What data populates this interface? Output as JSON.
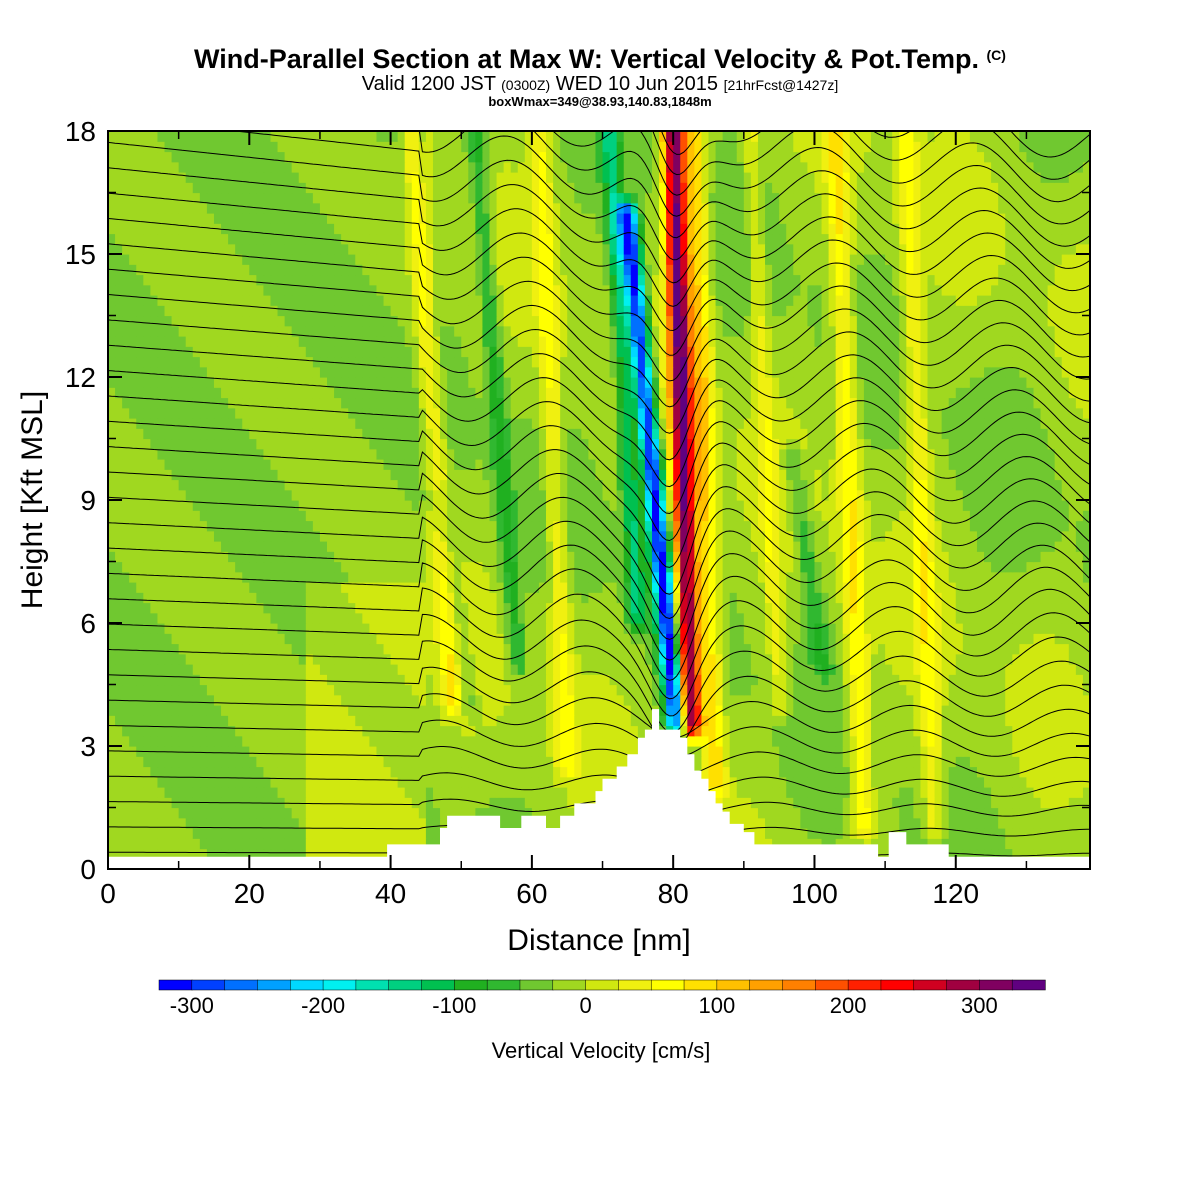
{
  "title": {
    "main": "Wind-Parallel Section at Max W: Vertical Velocity & Pot.Temp.",
    "copyright": "(C)",
    "valid_a": "Valid 1200 JST",
    "valid_utc": "(0300Z)",
    "valid_b": "WED 10 Jun 2015",
    "fcst": "[21hrFcst@1427z]",
    "box": "boxWmax=349@38.93,140.83,1848m"
  },
  "chart_data": {
    "type": "heatmap",
    "xlabel": "Distance [nm]",
    "ylabel": "Height [Kft MSL]",
    "xlim": [
      0,
      139
    ],
    "ylim": [
      0,
      18
    ],
    "x_ticks": [
      "0",
      "20",
      "40",
      "60",
      "80",
      "100",
      "120"
    ],
    "x_tick_values": [
      0,
      20,
      40,
      60,
      80,
      100,
      120
    ],
    "y_ticks": [
      "0",
      "3",
      "6",
      "9",
      "12",
      "15",
      "18"
    ],
    "y_tick_values": [
      0,
      3,
      6,
      9,
      12,
      15,
      18
    ],
    "colorbar": {
      "title": "Vertical Velocity [cm/s]",
      "labels": [
        "-300",
        "-200",
        "-100",
        "0",
        "100",
        "200",
        "300"
      ],
      "label_values": [
        -300,
        -200,
        -100,
        0,
        100,
        200,
        300
      ],
      "range": [
        -325,
        350
      ],
      "colors": [
        "#0000ff",
        "#0040ff",
        "#0070ff",
        "#00a0ff",
        "#00d8ff",
        "#00f0f0",
        "#00e0b0",
        "#00d080",
        "#00c050",
        "#20b020",
        "#30b830",
        "#70c830",
        "#a0d820",
        "#d0e810",
        "#f0f010",
        "#ffff00",
        "#ffe000",
        "#ffc000",
        "#ffa000",
        "#ff8000",
        "#ff5000",
        "#ff2000",
        "#ff0000",
        "#d00020",
        "#a00040",
        "#800060",
        "#600080"
      ]
    },
    "terrain_profile": {
      "x": [
        0,
        39.5,
        39.5,
        47,
        47,
        48,
        48,
        55.5,
        55.5,
        58.5,
        58.5,
        62,
        62,
        64,
        64,
        66,
        66,
        69,
        69,
        70,
        70,
        72,
        72,
        73.5,
        73.5,
        75,
        75,
        76,
        76,
        77,
        77,
        78,
        78,
        81,
        81,
        82,
        82,
        83,
        83,
        84,
        84,
        85,
        85,
        86,
        86,
        87,
        87,
        88,
        88,
        90,
        90,
        91.5,
        91.5,
        109,
        109,
        110.5,
        110.5,
        113,
        113,
        119,
        119,
        139
      ],
      "y": [
        0.3,
        0.3,
        0.6,
        0.6,
        1.0,
        1.0,
        1.3,
        1.3,
        1.0,
        1.0,
        1.3,
        1.3,
        1.0,
        1.0,
        1.3,
        1.3,
        1.6,
        1.6,
        1.9,
        1.9,
        2.2,
        2.2,
        2.5,
        2.5,
        2.8,
        2.8,
        3.2,
        3.2,
        3.4,
        3.4,
        3.9,
        3.9,
        3.4,
        3.4,
        3.2,
        3.2,
        2.8,
        2.8,
        2.4,
        2.4,
        2.2,
        2.2,
        1.9,
        1.9,
        1.6,
        1.6,
        1.4,
        1.4,
        1.1,
        1.1,
        0.9,
        0.9,
        0.6,
        0.6,
        0.3,
        0.3,
        0.9,
        0.9,
        0.6,
        0.6,
        0.3,
        0.3
      ]
    },
    "w_features": [
      {
        "kind": "updraft",
        "x": 82.5,
        "y_bottom": 3.5,
        "y_top": 18,
        "peak": 349,
        "lean": -1.2,
        "width": 1.6
      },
      {
        "kind": "downdraft",
        "x": 80.5,
        "y_bottom": 3.5,
        "y_top": 16,
        "peak": -300,
        "lean": -3.5,
        "width": 1.4
      },
      {
        "kind": "updraft",
        "x": 86,
        "y_bottom": 2.0,
        "y_top": 18,
        "peak": 110,
        "lean": -1.5,
        "width": 1.5
      },
      {
        "kind": "downdraft",
        "x": 75,
        "y_bottom": 6,
        "y_top": 18,
        "peak": -110,
        "lean": -2,
        "width": 1.3
      },
      {
        "kind": "updraft",
        "x": 49,
        "y_bottom": 4,
        "y_top": 18,
        "peak": 80,
        "lean": -3,
        "width": 1.5
      },
      {
        "kind": "updraft",
        "x": 65,
        "y_bottom": 2.5,
        "y_top": 18,
        "peak": 70,
        "lean": -2,
        "width": 1.5
      },
      {
        "kind": "downdraft",
        "x": 58,
        "y_bottom": 5,
        "y_top": 18,
        "peak": -70,
        "lean": -3,
        "width": 1.3
      },
      {
        "kind": "updraft",
        "x": 107,
        "y_bottom": 1,
        "y_top": 18,
        "peak": 90,
        "lean": -2,
        "width": 1.6
      },
      {
        "kind": "updraft",
        "x": 117,
        "y_bottom": 1,
        "y_top": 18,
        "peak": 70,
        "lean": -2,
        "width": 1.5
      },
      {
        "kind": "downdraft",
        "x": 101,
        "y_bottom": 5,
        "y_top": 10,
        "peak": -60,
        "lean": -2,
        "width": 1.5
      },
      {
        "kind": "downdraft",
        "x": 51,
        "y_bottom": 4,
        "y_top": 9,
        "peak": -50,
        "lean": -2,
        "width": 1.4
      },
      {
        "kind": "updraft",
        "x": 95,
        "y_bottom": 4,
        "y_top": 18,
        "peak": 55,
        "lean": -2,
        "width": 1.2
      }
    ],
    "theta_contours": {
      "interval_K": 2,
      "count": 34
    }
  }
}
